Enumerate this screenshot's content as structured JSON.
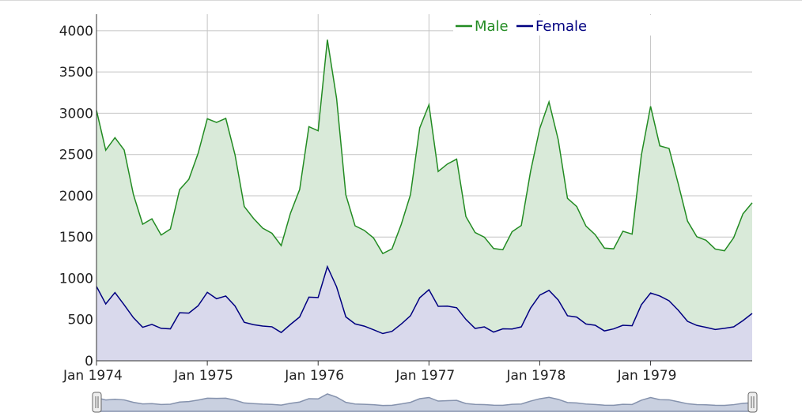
{
  "chart_data": {
    "type": "area",
    "title": "",
    "xlabel": "",
    "ylabel": "",
    "x_start": "1974-01",
    "x_end": "1979-12",
    "x_ticks": [
      "Jan 1974",
      "Jan 1975",
      "Jan 1976",
      "Jan 1977",
      "Jan 1978",
      "Jan 1979"
    ],
    "y_ticks": [
      "0",
      "500",
      "1000",
      "1500",
      "2000",
      "2500",
      "3000",
      "3500",
      "4000"
    ],
    "ylim": [
      0,
      4200
    ],
    "grid": true,
    "legend_position": "top-right",
    "stacked": true,
    "range_selector": true,
    "series": [
      {
        "name": "Male",
        "color": "#228b22",
        "fill": "#d9ead9",
        "values": [
          2134,
          1863,
          1877,
          1877,
          1492,
          1249,
          1280,
          1131,
          1209,
          1492,
          1621,
          1846,
          2103,
          2137,
          2153,
          1833,
          1403,
          1288,
          1186,
          1133,
          1053,
          1347,
          1545,
          2066,
          2020,
          2750,
          2283,
          1479,
          1189,
          1160,
          1113,
          970,
          999,
          1208,
          1467,
          2059,
          2240,
          1634,
          1722,
          1801,
          1246,
          1162,
          1087,
          1013,
          959,
          1179,
          1229,
          1655,
          2019,
          2284,
          1942,
          1423,
          1340,
          1187,
          1098,
          1004,
          970,
          1140,
          1110,
          1812,
          2263,
          1820,
          1846,
          1531,
          1215,
          1075,
          1056,
          975,
          940,
          1081,
          1294,
          1341
        ]
      },
      {
        "name": "Female",
        "color": "#000080",
        "fill": "#d9d9ec",
        "values": [
          901,
          689,
          827,
          677,
          522,
          406,
          441,
          393,
          387,
          582,
          578,
          666,
          830,
          752,
          785,
          664,
          467,
          438,
          421,
          412,
          343,
          440,
          531,
          771,
          767,
          1141,
          896,
          532,
          447,
          420,
          376,
          330,
          357,
          445,
          546,
          764,
          862,
          660,
          663,
          643,
          502,
          392,
          411,
          348,
          387,
          385,
          411,
          638,
          796,
          853,
          737,
          546,
          530,
          446,
          431,
          362,
          387,
          430,
          425,
          679,
          821,
          785,
          727,
          612,
          478,
          429,
          405,
          379,
          393,
          411,
          487,
          574
        ]
      }
    ]
  }
}
